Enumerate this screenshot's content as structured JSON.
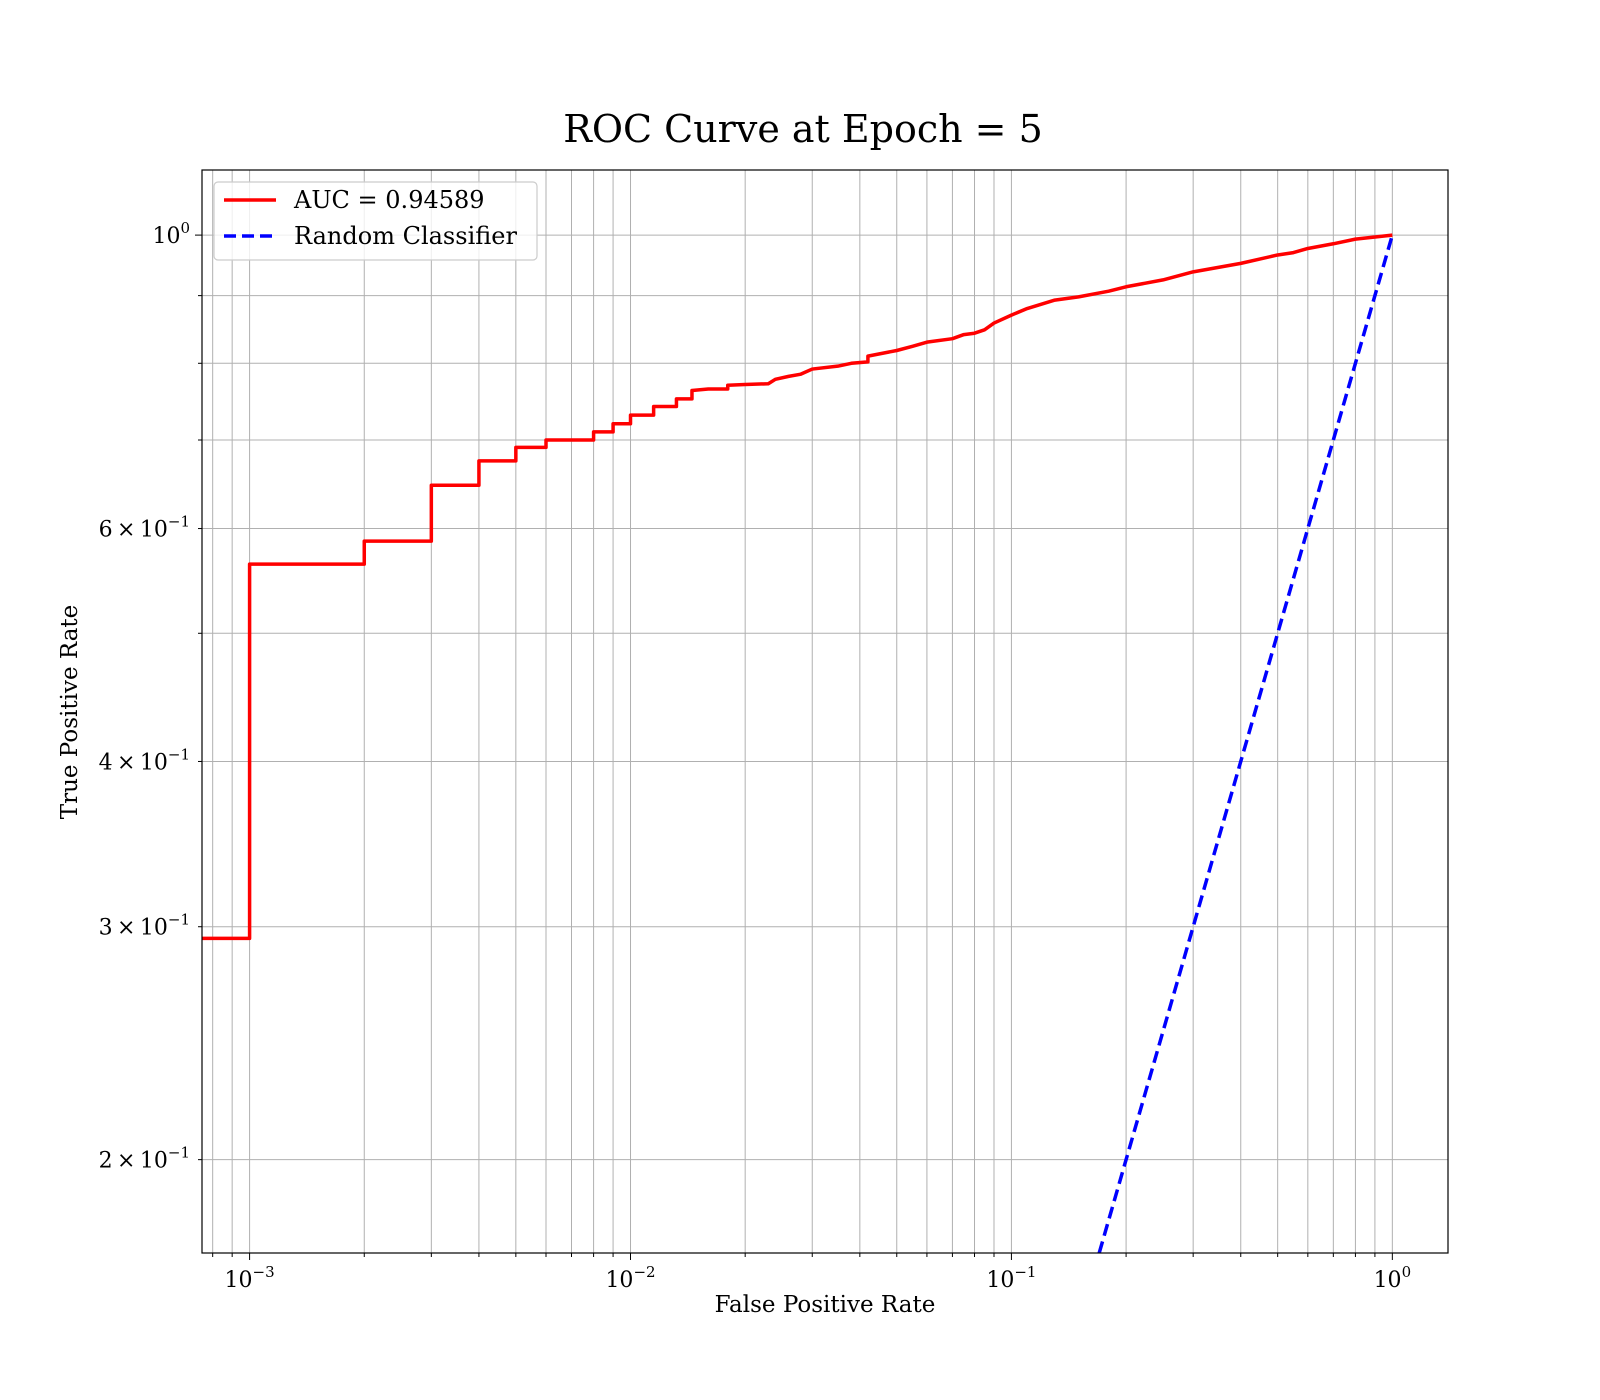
{
  "chart_data": {
    "type": "line",
    "title": "ROC Curve at Epoch = 5",
    "xlabel": "False Positive Rate",
    "ylabel": "True Positive Rate",
    "xscale": "log",
    "yscale": "log",
    "xlim": [
      0.00075,
      1.4
    ],
    "ylim": [
      0.17,
      1.12
    ],
    "grid": true,
    "legend_position": "top-left",
    "x_ticks": [
      {
        "value": 0.001,
        "base": "10",
        "exp": "−3"
      },
      {
        "value": 0.01,
        "base": "10",
        "exp": "−2"
      },
      {
        "value": 0.1,
        "base": "10",
        "exp": "−1"
      },
      {
        "value": 1,
        "base": "10",
        "exp": "0"
      }
    ],
    "y_ticks": [
      {
        "value": 1,
        "mant": "",
        "base": "10",
        "exp": "0"
      },
      {
        "value": 0.6,
        "mant": "6",
        "base": "10",
        "exp": "−1"
      },
      {
        "value": 0.4,
        "mant": "4",
        "base": "10",
        "exp": "−1"
      },
      {
        "value": 0.3,
        "mant": "3",
        "base": "10",
        "exp": "−1"
      },
      {
        "value": 0.2,
        "mant": "2",
        "base": "10",
        "exp": "−1"
      }
    ],
    "series": [
      {
        "name": "AUC = 0.94589",
        "color": "#ff0000",
        "style": "solid",
        "step": true,
        "x": [
          0.00075,
          0.001,
          0.001,
          0.002,
          0.002,
          0.003,
          0.003,
          0.004,
          0.004,
          0.005,
          0.005,
          0.006,
          0.006,
          0.008,
          0.008,
          0.009,
          0.009,
          0.01,
          0.01,
          0.0115,
          0.0115,
          0.0132,
          0.0132,
          0.0145,
          0.0145,
          0.016,
          0.018,
          0.018,
          0.02,
          0.023,
          0.024,
          0.026,
          0.028,
          0.03,
          0.035,
          0.038,
          0.042,
          0.042,
          0.05,
          0.055,
          0.06,
          0.07,
          0.075,
          0.08,
          0.085,
          0.09,
          0.1,
          0.11,
          0.13,
          0.15,
          0.18,
          0.2,
          0.25,
          0.3,
          0.4,
          0.5,
          0.55,
          0.6,
          0.7,
          0.8,
          1.0
        ],
        "y": [
          0.294,
          0.294,
          0.564,
          0.564,
          0.587,
          0.587,
          0.647,
          0.647,
          0.675,
          0.675,
          0.691,
          0.691,
          0.7,
          0.7,
          0.71,
          0.71,
          0.72,
          0.72,
          0.731,
          0.731,
          0.742,
          0.742,
          0.752,
          0.752,
          0.763,
          0.765,
          0.765,
          0.77,
          0.771,
          0.772,
          0.778,
          0.782,
          0.785,
          0.792,
          0.796,
          0.8,
          0.802,
          0.81,
          0.818,
          0.824,
          0.83,
          0.835,
          0.841,
          0.843,
          0.848,
          0.858,
          0.87,
          0.88,
          0.893,
          0.898,
          0.907,
          0.914,
          0.925,
          0.938,
          0.952,
          0.966,
          0.97,
          0.977,
          0.985,
          0.993,
          1.0
        ]
      },
      {
        "name": "Random Classifier",
        "color": "#0000ff",
        "style": "dashed",
        "step": false,
        "x": [
          0.17,
          1.0
        ],
        "y": [
          0.17,
          1.0
        ]
      }
    ]
  }
}
